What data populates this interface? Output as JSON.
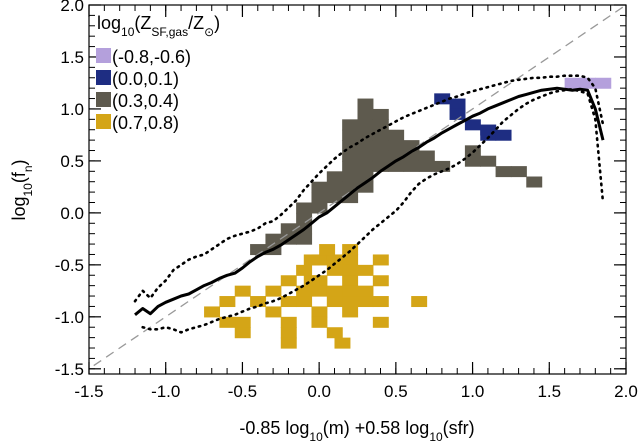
{
  "chart_data": {
    "type": "scatter",
    "title": "",
    "xlabel": {
      "pre": "-0.85 log",
      "sub1": "10",
      "mid": "(m) +0.58 log",
      "sub2": "10",
      "post": "(sfr)"
    },
    "ylabel": {
      "pre": "log",
      "sub1": "10",
      "mid": "(f",
      "sub2": "n",
      "post": ")"
    },
    "xlim": [
      -1.5,
      2.0
    ],
    "ylim": [
      -1.55,
      2.0
    ],
    "x_ticks": [
      "-1.5",
      "-1.0",
      "-0.5",
      "0.0",
      "0.5",
      "1.0",
      "1.5",
      "2.0"
    ],
    "y_ticks": [
      "-1.5",
      "-1.0",
      "-0.5",
      "0.0",
      "0.5",
      "1.0",
      "1.5",
      "2.0"
    ],
    "x_tick_values": [
      -1.5,
      -1.0,
      -0.5,
      0.0,
      0.5,
      1.0,
      1.5,
      2.0
    ],
    "y_tick_values": [
      -1.5,
      -1.0,
      -0.5,
      0.0,
      0.5,
      1.0,
      1.5,
      2.0
    ],
    "legend": {
      "title": {
        "pre": "log",
        "sub1": "10",
        "mid": "(Z",
        "sub2": "SF,gas",
        "mid2": "/Z",
        "sub3": "⊙",
        "post": ")"
      },
      "position": "top-left"
    },
    "cell_size": [
      0.1,
      0.1
    ],
    "series": [
      {
        "name": "(-0.8,-0.6)",
        "color": "#b4a0dc",
        "cells": [
          [
            1.65,
            1.25
          ],
          [
            1.75,
            1.25
          ],
          [
            1.85,
            1.25
          ]
        ]
      },
      {
        "name": "(0.0,0.1)",
        "color": "#1e2d82",
        "cells": [
          [
            0.8,
            1.1
          ],
          [
            0.9,
            1.05
          ],
          [
            0.9,
            0.95
          ],
          [
            1.0,
            0.85
          ],
          [
            1.1,
            0.8
          ],
          [
            1.1,
            0.75
          ],
          [
            1.2,
            0.75
          ]
        ]
      },
      {
        "name": "(0.3,0.4)",
        "color": "#5e5a4e",
        "cells": [
          [
            0.2,
            0.85
          ],
          [
            0.2,
            0.75
          ],
          [
            0.2,
            0.65
          ],
          [
            0.2,
            0.55
          ],
          [
            0.2,
            0.45
          ],
          [
            0.2,
            0.35
          ],
          [
            0.2,
            0.25
          ],
          [
            0.2,
            0.15
          ],
          [
            0.3,
            1.05
          ],
          [
            0.3,
            0.95
          ],
          [
            0.3,
            0.85
          ],
          [
            0.3,
            0.75
          ],
          [
            0.3,
            0.65
          ],
          [
            0.3,
            0.55
          ],
          [
            0.3,
            0.45
          ],
          [
            0.3,
            0.35
          ],
          [
            0.3,
            0.25
          ],
          [
            0.4,
            0.95
          ],
          [
            0.4,
            0.85
          ],
          [
            0.4,
            0.75
          ],
          [
            0.4,
            0.65
          ],
          [
            0.4,
            0.55
          ],
          [
            0.4,
            0.45
          ],
          [
            0.5,
            0.75
          ],
          [
            0.5,
            0.65
          ],
          [
            0.5,
            0.55
          ],
          [
            0.5,
            0.45
          ],
          [
            0.6,
            0.65
          ],
          [
            0.6,
            0.55
          ],
          [
            0.6,
            0.45
          ],
          [
            0.7,
            0.55
          ],
          [
            0.7,
            0.45
          ],
          [
            0.8,
            0.45
          ],
          [
            1.0,
            0.6
          ],
          [
            1.0,
            0.5
          ],
          [
            1.1,
            0.5
          ],
          [
            1.2,
            0.4
          ],
          [
            1.3,
            0.4
          ],
          [
            1.4,
            0.3
          ],
          [
            0.1,
            0.35
          ],
          [
            0.1,
            0.25
          ],
          [
            0.1,
            0.15
          ],
          [
            0.0,
            0.25
          ],
          [
            0.0,
            0.15
          ],
          [
            0.0,
            0.05
          ],
          [
            -0.1,
            0.05
          ],
          [
            -0.1,
            -0.05
          ],
          [
            -0.1,
            -0.15
          ],
          [
            -0.2,
            -0.15
          ],
          [
            -0.2,
            -0.25
          ],
          [
            -0.3,
            -0.25
          ],
          [
            -0.3,
            -0.35
          ],
          [
            -0.4,
            -0.35
          ],
          [
            -0.1,
            -0.25
          ]
        ]
      },
      {
        "name": "(0.7,0.8)",
        "color": "#d4a517",
        "cells": [
          [
            -0.4,
            -0.85
          ],
          [
            -0.3,
            -0.75
          ],
          [
            -0.3,
            -0.95
          ],
          [
            -0.2,
            -0.65
          ],
          [
            -0.2,
            -0.85
          ],
          [
            -0.2,
            -1.05
          ],
          [
            -0.2,
            -1.15
          ],
          [
            -0.1,
            -0.55
          ],
          [
            -0.1,
            -0.75
          ],
          [
            -0.1,
            -0.85
          ],
          [
            0.0,
            -0.45
          ],
          [
            0.0,
            -0.65
          ],
          [
            0.0,
            -0.75
          ],
          [
            0.0,
            -0.95
          ],
          [
            0.0,
            -1.05
          ],
          [
            0.1,
            -0.45
          ],
          [
            0.1,
            -0.55
          ],
          [
            0.1,
            -0.75
          ],
          [
            0.1,
            -0.85
          ],
          [
            0.2,
            -0.45
          ],
          [
            0.2,
            -0.55
          ],
          [
            0.2,
            -0.65
          ],
          [
            0.2,
            -0.75
          ],
          [
            0.2,
            -0.85
          ],
          [
            0.2,
            -0.95
          ],
          [
            0.3,
            -0.55
          ],
          [
            0.3,
            -0.75
          ],
          [
            0.3,
            -0.85
          ],
          [
            0.4,
            -0.65
          ],
          [
            0.4,
            -0.85
          ],
          [
            0.4,
            -1.05
          ],
          [
            0.65,
            -0.85
          ],
          [
            -0.5,
            -0.75
          ],
          [
            -0.6,
            -0.85
          ],
          [
            -0.5,
            -1.05
          ],
          [
            -0.7,
            -0.95
          ],
          [
            -0.6,
            -1.05
          ],
          [
            -0.5,
            -1.15
          ],
          [
            -0.2,
            -1.25
          ],
          [
            0.1,
            -1.15
          ],
          [
            0.05,
            -0.35
          ],
          [
            -0.05,
            -0.45
          ],
          [
            0.2,
            -0.35
          ],
          [
            0.4,
            -0.45
          ],
          [
            -0.05,
            -0.65
          ],
          [
            0.15,
            -1.25
          ]
        ]
      }
    ],
    "lines": {
      "median": {
        "style": "solid",
        "x": [
          -1.2,
          -1.15,
          -1.1,
          -1.05,
          -1.0,
          -0.95,
          -0.9,
          -0.85,
          -0.8,
          -0.75,
          -0.7,
          -0.65,
          -0.6,
          -0.55,
          -0.5,
          -0.45,
          -0.4,
          -0.35,
          -0.3,
          -0.25,
          -0.2,
          -0.15,
          -0.1,
          -0.05,
          0.0,
          0.05,
          0.1,
          0.15,
          0.2,
          0.25,
          0.3,
          0.35,
          0.4,
          0.45,
          0.5,
          0.55,
          0.6,
          0.65,
          0.7,
          0.75,
          0.8,
          0.85,
          0.9,
          0.95,
          1.0,
          1.05,
          1.1,
          1.15,
          1.2,
          1.25,
          1.3,
          1.35,
          1.4,
          1.45,
          1.5,
          1.55,
          1.6,
          1.65,
          1.7,
          1.75,
          1.8,
          1.85
        ],
        "y": [
          -0.98,
          -0.92,
          -0.97,
          -0.9,
          -0.86,
          -0.83,
          -0.8,
          -0.78,
          -0.74,
          -0.7,
          -0.67,
          -0.63,
          -0.6,
          -0.58,
          -0.53,
          -0.47,
          -0.42,
          -0.38,
          -0.35,
          -0.31,
          -0.26,
          -0.21,
          -0.16,
          -0.1,
          -0.04,
          0.0,
          0.06,
          0.12,
          0.18,
          0.24,
          0.29,
          0.34,
          0.4,
          0.45,
          0.5,
          0.54,
          0.59,
          0.63,
          0.68,
          0.72,
          0.77,
          0.81,
          0.85,
          0.89,
          0.93,
          0.96,
          1.0,
          1.03,
          1.06,
          1.09,
          1.12,
          1.14,
          1.16,
          1.18,
          1.19,
          1.2,
          1.19,
          1.18,
          1.19,
          1.18,
          1.0,
          0.7
        ]
      },
      "upper": {
        "style": "dotted",
        "x": [
          -1.2,
          -1.15,
          -1.1,
          -1.05,
          -1.0,
          -0.95,
          -0.9,
          -0.85,
          -0.8,
          -0.75,
          -0.7,
          -0.65,
          -0.6,
          -0.55,
          -0.5,
          -0.45,
          -0.4,
          -0.35,
          -0.3,
          -0.25,
          -0.2,
          -0.15,
          -0.1,
          -0.05,
          0.0,
          0.05,
          0.1,
          0.15,
          0.2,
          0.25,
          0.3,
          0.35,
          0.4,
          0.45,
          0.5,
          0.55,
          0.6,
          0.65,
          0.7,
          0.75,
          0.8,
          0.85,
          0.9,
          0.95,
          1.0,
          1.05,
          1.1,
          1.15,
          1.2,
          1.25,
          1.3,
          1.35,
          1.4,
          1.45,
          1.5,
          1.55,
          1.6,
          1.65,
          1.7,
          1.75,
          1.8,
          1.85
        ],
        "y": [
          -0.85,
          -0.75,
          -0.82,
          -0.72,
          -0.65,
          -0.55,
          -0.5,
          -0.45,
          -0.42,
          -0.4,
          -0.35,
          -0.3,
          -0.25,
          -0.22,
          -0.2,
          -0.18,
          -0.15,
          -0.1,
          -0.08,
          -0.02,
          0.05,
          0.12,
          0.22,
          0.3,
          0.38,
          0.45,
          0.52,
          0.58,
          0.63,
          0.67,
          0.72,
          0.76,
          0.8,
          0.84,
          0.88,
          0.92,
          0.95,
          0.98,
          1.01,
          1.04,
          1.07,
          1.1,
          1.12,
          1.15,
          1.17,
          1.19,
          1.21,
          1.23,
          1.25,
          1.27,
          1.28,
          1.29,
          1.3,
          1.3,
          1.31,
          1.31,
          1.32,
          1.32,
          1.32,
          1.3,
          1.2,
          0.85
        ]
      },
      "lower": {
        "style": "dotted",
        "x": [
          -1.15,
          -1.1,
          -1.05,
          -1.0,
          -0.95,
          -0.9,
          -0.85,
          -0.8,
          -0.75,
          -0.7,
          -0.65,
          -0.6,
          -0.55,
          -0.5,
          -0.45,
          -0.4,
          -0.35,
          -0.3,
          -0.25,
          -0.2,
          -0.15,
          -0.1,
          -0.05,
          0.0,
          0.05,
          0.1,
          0.15,
          0.2,
          0.25,
          0.3,
          0.35,
          0.4,
          0.45,
          0.5,
          0.55,
          0.6,
          0.65,
          0.7,
          0.75,
          0.8,
          0.85,
          0.9,
          0.95,
          1.0,
          1.05,
          1.1,
          1.15,
          1.2,
          1.25,
          1.3,
          1.35,
          1.4,
          1.45,
          1.5,
          1.55,
          1.6,
          1.65,
          1.7,
          1.75,
          1.8,
          1.85
        ],
        "y": [
          -1.1,
          -1.12,
          -1.12,
          -1.1,
          -1.12,
          -1.15,
          -1.12,
          -1.1,
          -1.08,
          -1.05,
          -1.02,
          -1.0,
          -0.98,
          -0.95,
          -0.92,
          -0.9,
          -0.87,
          -0.85,
          -0.82,
          -0.78,
          -0.74,
          -0.7,
          -0.65,
          -0.6,
          -0.55,
          -0.49,
          -0.43,
          -0.37,
          -0.3,
          -0.23,
          -0.16,
          -0.1,
          -0.04,
          0.02,
          0.1,
          0.2,
          0.28,
          0.33,
          0.37,
          0.4,
          0.43,
          0.47,
          0.52,
          0.58,
          0.65,
          0.72,
          0.8,
          0.88,
          0.94,
          1.0,
          1.05,
          1.09,
          1.12,
          1.15,
          1.17,
          1.18,
          1.19,
          1.17,
          1.15,
          0.9,
          0.1
        ]
      },
      "one_to_one": {
        "style": "dashed",
        "color": "#999999",
        "x": [
          -1.55,
          2.0
        ],
        "y": [
          -1.55,
          2.0
        ]
      }
    }
  }
}
